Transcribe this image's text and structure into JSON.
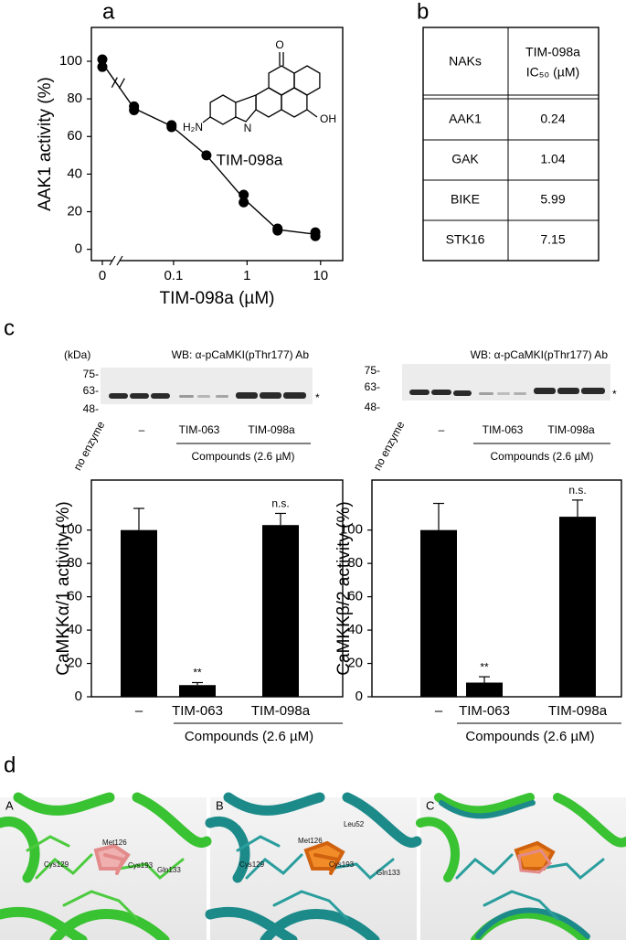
{
  "panel_labels": [
    "a",
    "b",
    "c",
    "d"
  ],
  "chart_data": [
    {
      "type": "scatter",
      "xlabel": "TIM-098a (µM)",
      "ylabel": "AAK1 activity (%)",
      "x": [
        0,
        0,
        0.029,
        0.029,
        0.094,
        0.094,
        0.28,
        0.9,
        0.9,
        2.6,
        2.6,
        8.5,
        8.5
      ],
      "values": [
        101,
        97,
        76,
        74,
        66,
        65,
        50,
        29,
        25,
        11,
        10,
        9,
        7
      ],
      "color": "#000000",
      "xscale": "log",
      "x_break": true,
      "line": true,
      "xlim": [
        0.018,
        20
      ],
      "xticks": [
        0,
        0.1,
        1,
        10
      ],
      "ylim": [
        -6,
        118
      ],
      "yticks": [
        0,
        20,
        40,
        60,
        80,
        100
      ]
    },
    {
      "type": "bar",
      "ylabel": "CaMKKα/1 activity (%)",
      "xgroup": "Compounds (2.6 µM)",
      "categories": [
        "–",
        "TIM-063",
        "TIM-098a"
      ],
      "values": [
        100,
        7,
        103
      ],
      "errors": [
        13,
        1.5,
        7
      ],
      "annotations": [
        {
          "index": 1,
          "text": "**"
        },
        {
          "index": 2,
          "text": "n.s."
        }
      ],
      "color": "#000000",
      "ylim": [
        0,
        130
      ],
      "yticks": [
        0,
        20,
        40,
        60,
        80,
        100
      ]
    },
    {
      "type": "bar",
      "ylabel": "CaMKKβ/2 activity (%)",
      "xgroup": "Compounds (2.6 µM)",
      "categories": [
        "–",
        "TIM-063",
        "TIM-098a"
      ],
      "values": [
        100,
        8.5,
        108
      ],
      "errors": [
        16,
        3.5,
        10
      ],
      "annotations": [
        {
          "index": 1,
          "text": "**"
        },
        {
          "index": 2,
          "text": "n.s."
        }
      ],
      "color": "#000000",
      "ylim": [
        0,
        130
      ],
      "yticks": [
        0,
        20,
        40,
        60,
        80,
        100
      ]
    }
  ],
  "structure": {
    "name": "TIM-098a",
    "atoms": [
      "O",
      "H₂N",
      "N",
      "OH"
    ]
  },
  "table": {
    "header": [
      [
        "NAKs"
      ],
      [
        "TIM-098a",
        "IC₅₀ (µM)"
      ]
    ],
    "rows": [
      [
        "AAK1",
        0.24
      ],
      [
        "GAK",
        1.04
      ],
      [
        "BIKE",
        5.99
      ],
      [
        "STK16",
        7.15
      ]
    ]
  },
  "blots": [
    {
      "unit": "(kDa)",
      "markers": [
        "75-",
        "63-",
        "48-"
      ],
      "wb": "WB: α-pCaMKI(pThr177) Ab",
      "star": "*",
      "lanes": [
        "no enzyme",
        "–",
        "TIM-063",
        "TIM-098a"
      ],
      "group": "Compounds (2.6 µM)"
    },
    {
      "markers": [
        "75-",
        "63-",
        "48-"
      ],
      "wb": "WB: α-pCaMKI(pThr177) Ab",
      "star": "*",
      "lanes": [
        "no enzyme",
        "–",
        "TIM-063",
        "TIM-098a"
      ],
      "group": "Compounds (2.6 µM)"
    }
  ],
  "docking": {
    "labels": [
      "A",
      "B",
      "C"
    ],
    "residues": [
      [
        "Met126",
        "Cys129",
        "Cys193",
        "Gln133"
      ],
      [
        "Met126",
        "Leu52",
        "Cys129",
        "Cys193",
        "Gln133"
      ]
    ]
  }
}
